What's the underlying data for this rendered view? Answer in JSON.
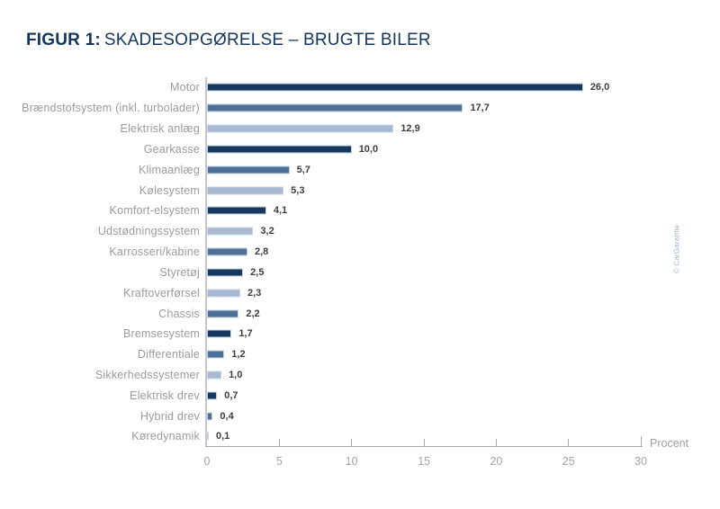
{
  "title": {
    "prefix": "FIGUR 1:",
    "text": "SKADESOPGØRELSE – BRUGTE BILER"
  },
  "credit": "© CarGarantie",
  "colors": {
    "dark": "#16395f",
    "medium": "#4d7096",
    "light": "#a9b8d2",
    "title": "#14365c",
    "axis": "#a8a8a8",
    "category_label": "#9b9b9b",
    "value_label": "#3d3d3d"
  },
  "chart_data": {
    "type": "bar",
    "orientation": "horizontal",
    "title": "FIGUR 1: SKADESOPGØRELSE – BRUGTE BILER",
    "categories": [
      "Motor",
      "Brændstofsystem (inkl. turbolader)",
      "Elektrisk anlæg",
      "Gearkasse",
      "Klimaanlæg",
      "Kølesystem",
      "Komfort-elsystem",
      "Udstødningssystem",
      "Karrosseri/kabine",
      "Styretøj",
      "Kraftoverførsel",
      "Chassis",
      "Bremsesystem",
      "Differentiale",
      "Sikkerhedssystemer",
      "Elektrisk drev",
      "Hybrid drev",
      "Køredynamik"
    ],
    "values": [
      26.0,
      17.7,
      12.9,
      10.0,
      5.7,
      5.3,
      4.1,
      3.2,
      2.8,
      2.5,
      2.3,
      2.2,
      1.7,
      1.2,
      1.0,
      0.7,
      0.4,
      0.1
    ],
    "value_labels": [
      "26,0",
      "17,7",
      "12,9",
      "10,0",
      "5,7",
      "5,3",
      "4,1",
      "3,2",
      "2,8",
      "2,5",
      "2,3",
      "2,2",
      "1,7",
      "1,2",
      "1,0",
      "0,7",
      "0,4",
      "0,1"
    ],
    "bar_colors": [
      "dark",
      "medium",
      "light",
      "dark",
      "medium",
      "light",
      "dark",
      "light",
      "medium",
      "dark",
      "light",
      "medium",
      "dark",
      "medium",
      "light",
      "dark",
      "medium",
      "light"
    ],
    "xlabel": "Procent",
    "xticks": [
      0,
      5,
      10,
      15,
      20,
      25,
      30
    ],
    "xlim": [
      0,
      30
    ],
    "grid": false,
    "legend": false
  }
}
